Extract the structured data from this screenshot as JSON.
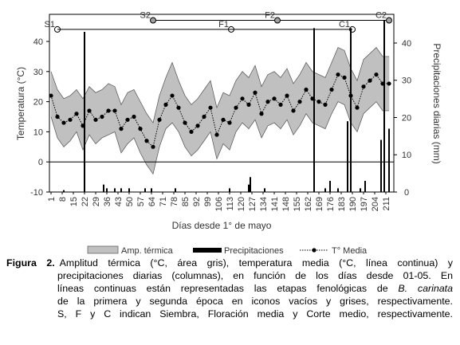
{
  "chart_data": {
    "type": "combo",
    "xlabel": "Días desde 1° de mayo",
    "ylabel": "Temperatura (°C)",
    "y2label": "Precipitaciones diarias (mm)",
    "xlim": [
      0,
      216
    ],
    "xticks": [
      1,
      8,
      15,
      22,
      29,
      36,
      43,
      50,
      57,
      64,
      71,
      78,
      85,
      92,
      99,
      106,
      113,
      120,
      127,
      134,
      141,
      148,
      155,
      162,
      169,
      176,
      183,
      190,
      197,
      204,
      211
    ],
    "ylim": [
      -10,
      49
    ],
    "yticks": [
      -10,
      0,
      10,
      20,
      30,
      40
    ],
    "y2lim": [
      0,
      47.7
    ],
    "y2ticks": [
      0,
      10,
      20,
      30,
      40
    ],
    "x": [
      1,
      5,
      9,
      13,
      17,
      21,
      25,
      29,
      33,
      37,
      41,
      45,
      49,
      53,
      57,
      61,
      65,
      69,
      73,
      77,
      81,
      85,
      89,
      93,
      97,
      101,
      105,
      109,
      113,
      117,
      121,
      125,
      129,
      133,
      137,
      141,
      145,
      149,
      153,
      157,
      161,
      165,
      169,
      173,
      177,
      181,
      185,
      189,
      193,
      197,
      201,
      205,
      209,
      213
    ],
    "series": [
      {
        "name": "Amp. térmica",
        "color": "#c0c0c0",
        "low": [
          15,
          8,
          5,
          7,
          10,
          4,
          9,
          6,
          8,
          9,
          10,
          3,
          6,
          8,
          3,
          -1,
          -4,
          5,
          11,
          13,
          10,
          5,
          2,
          4,
          7,
          10,
          1,
          6,
          4,
          10,
          13,
          11,
          14,
          8,
          12,
          13,
          11,
          14,
          9,
          12,
          16,
          13,
          12,
          11,
          16,
          20,
          19,
          13,
          10,
          16,
          18,
          20,
          17,
          17
        ],
        "high": [
          30,
          24,
          21,
          22,
          24,
          21,
          25,
          23,
          24,
          26,
          25,
          19,
          23,
          24,
          20,
          16,
          13,
          22,
          28,
          33,
          27,
          22,
          19,
          21,
          24,
          27,
          18,
          23,
          22,
          27,
          30,
          28,
          32,
          25,
          29,
          30,
          28,
          31,
          26,
          29,
          33,
          30,
          29,
          28,
          33,
          38,
          37,
          31,
          27,
          34,
          36,
          38,
          35,
          35
        ]
      },
      {
        "name": "Precipitaciones",
        "color": "#000000",
        "axis": "y2",
        "x": [
          9,
          22,
          34,
          36,
          41,
          45,
          50,
          60,
          64,
          79,
          113,
          125,
          126,
          135,
          166,
          173,
          176,
          181,
          187,
          189,
          195,
          198,
          208,
          210,
          213
        ],
        "values": [
          0.5,
          43,
          2,
          1,
          1,
          1,
          1,
          1,
          1,
          1,
          1,
          2,
          4,
          1,
          44,
          1,
          3,
          1,
          19,
          44,
          1,
          3,
          14,
          46,
          17
        ]
      },
      {
        "name": "T° Media",
        "color": "#000000",
        "values": [
          22,
          15,
          13,
          14,
          16,
          12,
          17,
          14,
          15,
          17,
          17,
          11,
          14,
          15,
          11,
          7,
          5,
          14,
          19,
          22,
          18,
          13,
          10,
          12,
          15,
          18,
          9,
          14,
          13,
          18,
          21,
          19,
          23,
          16,
          20,
          21,
          19,
          22,
          17,
          20,
          24,
          21,
          20,
          19,
          24,
          29,
          28,
          22,
          18,
          25,
          27,
          29,
          26,
          26
        ]
      }
    ],
    "stages": [
      {
        "y": 44,
        "fill": "none",
        "points": [
          {
            "label": "S1",
            "x": 5
          },
          {
            "label": "F1",
            "x": 114
          },
          {
            "label": "C1",
            "x": 190
          }
        ]
      },
      {
        "y": 47,
        "fill": "#a0a0a0",
        "points": [
          {
            "label": "S2",
            "x": 65
          },
          {
            "label": "F2",
            "x": 143
          },
          {
            "label": "C2",
            "x": 213
          }
        ]
      }
    ]
  },
  "caption": {
    "label": "Figura 2.",
    "lines": [
      "Amplitud térmica (°C, área gris), temperatura media (°C, línea continua) y",
      "precipitaciones diarias (columnas), en función de los días desde 01-05. En",
      {
        "text": "líneas continuas están representadas las etapas fenológicas de ",
        "italic": "B. carinata"
      },
      "de la primera y segunda época en iconos vacíos y grises, respectivamente.",
      "S, F y C indican Siembra, Floración media y Corte medio, respectivamente."
    ]
  }
}
